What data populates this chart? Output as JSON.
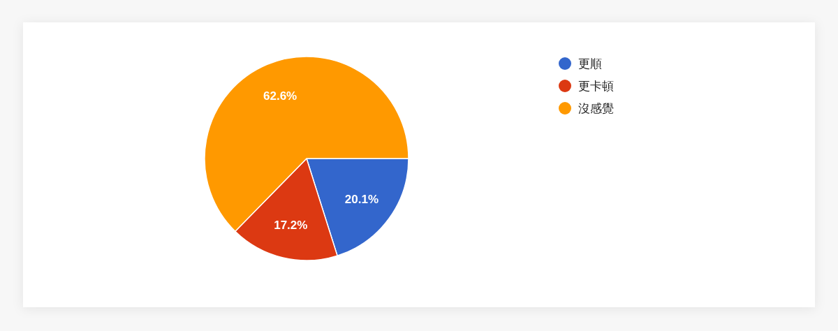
{
  "chart_data": {
    "type": "pie",
    "categories": [
      "更順",
      "更卡頓",
      "沒感覺"
    ],
    "values": [
      20.1,
      17.2,
      62.6
    ],
    "colors": [
      "#3366cc",
      "#dc3912",
      "#ff9900"
    ],
    "value_labels": [
      "20.1%",
      "17.2%",
      "62.6%"
    ],
    "legend": "top right"
  }
}
